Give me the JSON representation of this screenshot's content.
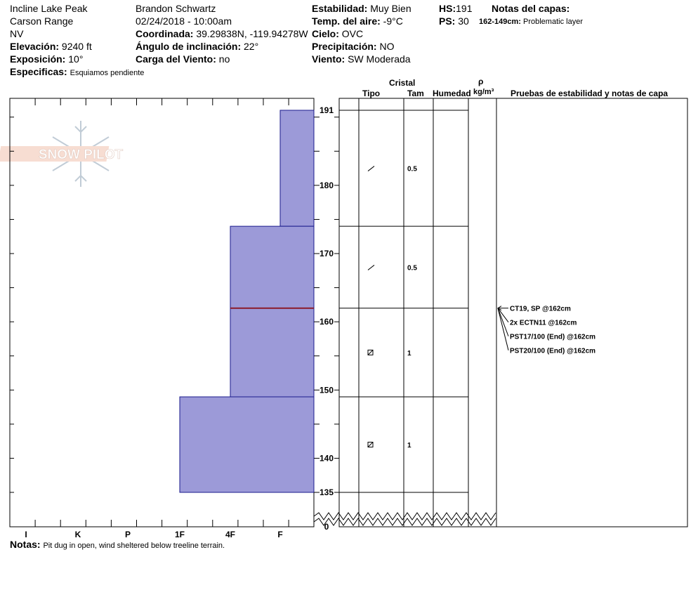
{
  "header": {
    "location": "Incline Lake Peak",
    "range": "Carson Range",
    "state": "NV",
    "elevation_label": "Elevación:",
    "elevation": "9240 ft",
    "aspect_label": "Exposición:",
    "aspect": "10°",
    "specifics_label": "Especificas:",
    "specifics": "Esquiamos pendiente",
    "observer": "Brandon Schwartz",
    "datetime": "02/24/2018 - 10:00am",
    "coord_label": "Coordinada:",
    "coord": "39.29838N, -119.94278W",
    "slope_label": "Ángulo de inclinación:",
    "slope": "22°",
    "wind_load_label": "Carga del Viento:",
    "wind_load": "no",
    "stability_label": "Estabilidad:",
    "stability": "Muy Bien",
    "air_temp_label": "Temp. del aire:",
    "air_temp": "-9°C",
    "sky_label": "Cielo:",
    "sky": "OVC",
    "precip_label": "Precipitación:",
    "precip": "NO",
    "wind_label": "Viento:",
    "wind": "SW Moderada",
    "hs_label": "HS:",
    "hs": "191",
    "ps_label": "PS:",
    "ps": "30",
    "layer_notes_label": "Notas del capas:",
    "layer_note_range": "162-149cm:",
    "layer_note_text": "Problematic layer"
  },
  "logo_text": "SNOW PILOT",
  "notes_label": "Notas:",
  "notes": "Pit dug in open, wind sheltered below treeline terrain.",
  "columns": {
    "cristal": "Cristal",
    "tipo": "Tipo",
    "tam": "Tam",
    "humedad": "Humedad",
    "rho": "ρ",
    "density_unit": "kg/m³",
    "tests": "Pruebas de estabilidad y notas de capa"
  },
  "colors": {
    "hardness_fill": "#9c9ad8",
    "hardness_stroke": "#1a1a8c",
    "weak_layer": "#8b1a2b"
  },
  "chart_data": {
    "type": "bar",
    "title": "",
    "xlabel": "",
    "ylabel": "",
    "hardness_categories": [
      "I",
      "K",
      "P",
      "1F",
      "4F",
      "F"
    ],
    "depth_ticks": [
      "191",
      "180",
      "170",
      "160",
      "150",
      "140",
      "135",
      "0"
    ],
    "ylim": [
      135,
      191
    ],
    "layers": [
      {
        "top": 191,
        "bottom": 174,
        "hardness": "F"
      },
      {
        "top": 174,
        "bottom": 162,
        "hardness": "4F"
      },
      {
        "top": 162,
        "bottom": 149,
        "hardness": "4F"
      },
      {
        "top": 149,
        "bottom": 135,
        "hardness": "1F"
      }
    ],
    "weak_layer_depth": 162,
    "crystals": [
      {
        "depth": 182.5,
        "type": "precipitation-particles",
        "size": "0.5"
      },
      {
        "depth": 168,
        "type": "precipitation-particles",
        "size": "0.5"
      },
      {
        "depth": 155.5,
        "type": "faceted-crystals",
        "size": "1"
      },
      {
        "depth": 142,
        "type": "faceted-crystals",
        "size": "1"
      }
    ],
    "tests": [
      "CT19, SP @162cm",
      "2x ECTN11 @162cm",
      "PST17/100 (End) @162cm",
      "PST20/100 (End) @162cm"
    ]
  }
}
